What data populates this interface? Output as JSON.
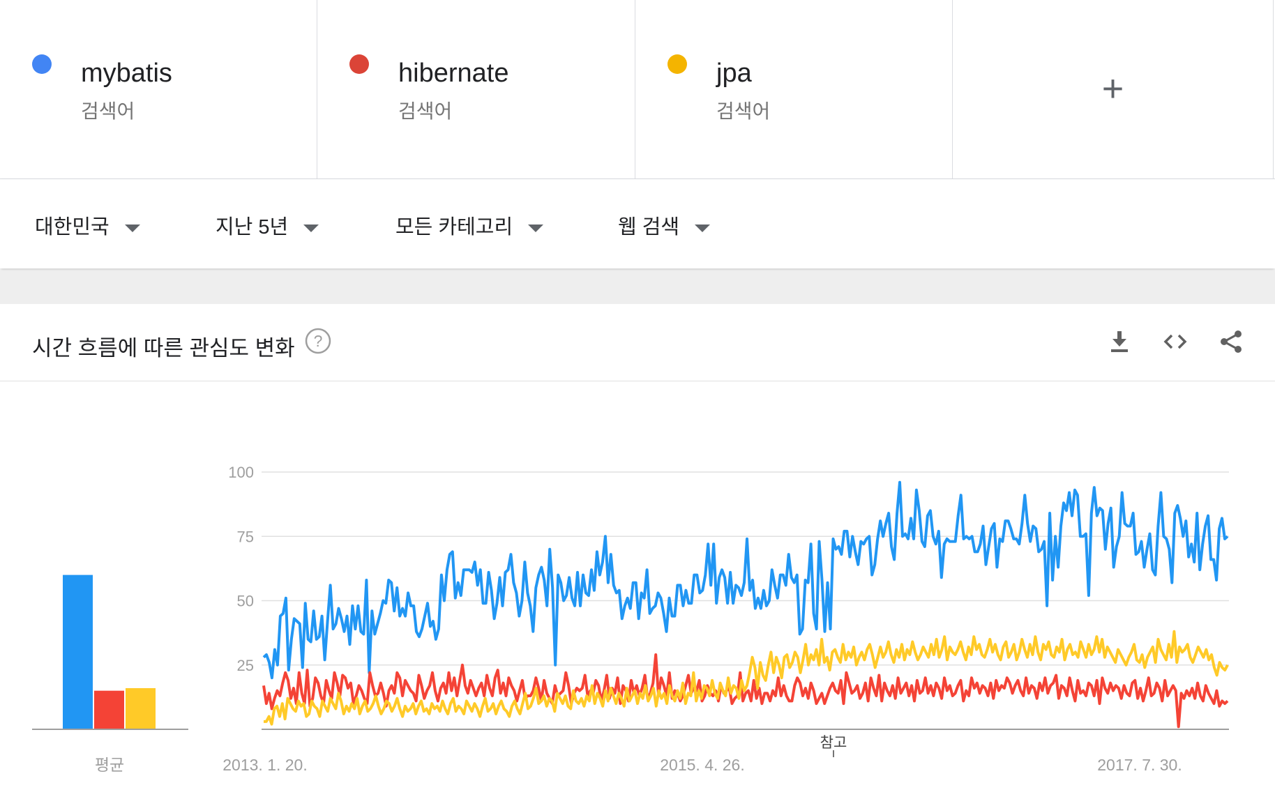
{
  "terms": [
    {
      "name": "mybatis",
      "type": "검색어",
      "color": "#4285F4"
    },
    {
      "name": "hibernate",
      "type": "검색어",
      "color": "#DB4437"
    },
    {
      "name": "jpa",
      "type": "검색어",
      "color": "#F4B400"
    }
  ],
  "add_term": {
    "label": "+"
  },
  "filters": {
    "region": "대한민국",
    "period": "지난 5년",
    "category": "모든 카테고리",
    "search_type": "웹 검색"
  },
  "card": {
    "title": "시간 흐름에 따른 관심도 변화",
    "help_icon": "help-circle-icon",
    "actions": [
      "download-icon",
      "embed-icon",
      "share-icon"
    ]
  },
  "chart_data": {
    "type": "line",
    "x_tick_labels": [
      "2013. 1. 20.",
      "2015. 4. 26.",
      "2017. 7. 30."
    ],
    "y_ticks": [
      25,
      50,
      75,
      100
    ],
    "ylim": [
      0,
      100
    ],
    "note_label": "참고",
    "grid": true,
    "average_bar": {
      "label": "평균",
      "values": [
        {
          "name": "mybatis",
          "value": 60,
          "color": "#2196F3"
        },
        {
          "name": "hibernate",
          "value": 15,
          "color": "#F44336"
        },
        {
          "name": "jpa",
          "value": 16,
          "color": "#FFCA28"
        }
      ]
    },
    "series": [
      {
        "name": "mybatis",
        "color": "#2196F3",
        "values": [
          28,
          29,
          26,
          20,
          31,
          25,
          44,
          45,
          51,
          23,
          35,
          43,
          42,
          41,
          24,
          49,
          35,
          34,
          46,
          35,
          36,
          44,
          27,
          42,
          56,
          39,
          41,
          47,
          43,
          38,
          44,
          33,
          48,
          39,
          48,
          38,
          37,
          58,
          22,
          46,
          37,
          41,
          45,
          50,
          49,
          58,
          57,
          46,
          55,
          44,
          47,
          44,
          53,
          48,
          48,
          38,
          36,
          39,
          44,
          49,
          40,
          42,
          35,
          39,
          60,
          50,
          62,
          68,
          69,
          51,
          57,
          52,
          62,
          62,
          62,
          61,
          65,
          56,
          62,
          49,
          49,
          61,
          54,
          43,
          49,
          59,
          48,
          61,
          62,
          68,
          57,
          53,
          44,
          50,
          65,
          53,
          48,
          38,
          55,
          60,
          63,
          58,
          48,
          70,
          55,
          25,
          60,
          57,
          50,
          52,
          59,
          51,
          48,
          61,
          48,
          60,
          53,
          52,
          62,
          54,
          69,
          60,
          65,
          75,
          57,
          68,
          56,
          53,
          54,
          43,
          48,
          51,
          47,
          57,
          57,
          43,
          53,
          51,
          62,
          45,
          47,
          48,
          53,
          51,
          45,
          38,
          51,
          44,
          44,
          56,
          56,
          48,
          54,
          49,
          49,
          60,
          60,
          53,
          54,
          60,
          72,
          56,
          72,
          49,
          59,
          62,
          59,
          49,
          61,
          49,
          56,
          55,
          52,
          57,
          74,
          54,
          58,
          47,
          51,
          47,
          54,
          48,
          50,
          62,
          56,
          51,
          60,
          60,
          56,
          68,
          59,
          57,
          60,
          37,
          39,
          58,
          57,
          72,
          45,
          39,
          73,
          58,
          38,
          57,
          39,
          74,
          70,
          71,
          68,
          77,
          77,
          67,
          75,
          69,
          64,
          73,
          72,
          74,
          75,
          60,
          64,
          74,
          81,
          75,
          80,
          84,
          71,
          66,
          84,
          96,
          75,
          76,
          74,
          82,
          74,
          93,
          85,
          73,
          71,
          83,
          85,
          75,
          72,
          77,
          59,
          72,
          74,
          73,
          73,
          73,
          83,
          91,
          74,
          75,
          74,
          75,
          69,
          69,
          72,
          79,
          64,
          71,
          78,
          80,
          63,
          74,
          73,
          81,
          81,
          78,
          74,
          74,
          72,
          80,
          91,
          80,
          73,
          79,
          78,
          69,
          70,
          73,
          48,
          84,
          58,
          75,
          63,
          79,
          88,
          85,
          92,
          83,
          93,
          91,
          75,
          75,
          76,
          52,
          84,
          94,
          83,
          86,
          85,
          70,
          80,
          86,
          63,
          71,
          75,
          92,
          80,
          79,
          79,
          84,
          68,
          69,
          73,
          63,
          70,
          76,
          62,
          60,
          79,
          92,
          75,
          74,
          70,
          57,
          84,
          87,
          82,
          75,
          81,
          67,
          72,
          65,
          84,
          62,
          72,
          79,
          83,
          66,
          66,
          58,
          78,
          82,
          74,
          75
        ],
        "values_note": "weekly index values, 2013-01 to 2017-12"
      },
      {
        "name": "hibernate",
        "color": "#F44336",
        "values": [
          17,
          10,
          14,
          8,
          12,
          15,
          13,
          18,
          22,
          19,
          12,
          16,
          10,
          22,
          14,
          10,
          23,
          9,
          12,
          20,
          18,
          13,
          10,
          19,
          15,
          12,
          22,
          18,
          13,
          21,
          20,
          16,
          18,
          10,
          13,
          17,
          15,
          12,
          10,
          22,
          17,
          13,
          14,
          18,
          14,
          9,
          15,
          17,
          14,
          22,
          20,
          13,
          19,
          17,
          15,
          14,
          11,
          21,
          17,
          12,
          15,
          17,
          22,
          15,
          11,
          16,
          18,
          14,
          22,
          15,
          20,
          13,
          19,
          25,
          17,
          14,
          19,
          16,
          13,
          16,
          18,
          13,
          21,
          16,
          13,
          20,
          23,
          14,
          18,
          13,
          20,
          17,
          15,
          11,
          15,
          19,
          12,
          13,
          13,
          15,
          20,
          16,
          11,
          19,
          14,
          12,
          10,
          17,
          13,
          14,
          15,
          22,
          17,
          10,
          14,
          16,
          15,
          16,
          21,
          13,
          15,
          14,
          19,
          17,
          11,
          15,
          21,
          12,
          16,
          14,
          20,
          10,
          17,
          15,
          11,
          19,
          14,
          17,
          13,
          16,
          21,
          12,
          14,
          18,
          29,
          13,
          20,
          17,
          13,
          22,
          12,
          15,
          14,
          11,
          13,
          17,
          21,
          14,
          16,
          15,
          19,
          11,
          13,
          17,
          14,
          13,
          15,
          11,
          17,
          14,
          15,
          16,
          10,
          12,
          13,
          22,
          11,
          14,
          15,
          11,
          19,
          12,
          16,
          10,
          14,
          14,
          11,
          15,
          13,
          20,
          13,
          17,
          13,
          11,
          11,
          17,
          20,
          18,
          13,
          16,
          12,
          18,
          15,
          10,
          12,
          14,
          10,
          13,
          16,
          18,
          15,
          14,
          19,
          10,
          22,
          18,
          14,
          15,
          17,
          12,
          14,
          18,
          11,
          20,
          16,
          13,
          21,
          11,
          18,
          15,
          13,
          17,
          12,
          20,
          14,
          16,
          18,
          13,
          17,
          11,
          19,
          14,
          15,
          20,
          14,
          17,
          13,
          18,
          16,
          12,
          20,
          15,
          17,
          13,
          14,
          17,
          19,
          11,
          15,
          13,
          20,
          16,
          18,
          14,
          17,
          16,
          13,
          18,
          12,
          19,
          15,
          17,
          16,
          20,
          18,
          14,
          17,
          19,
          15,
          13,
          20,
          14,
          17,
          16,
          12,
          18,
          15,
          20,
          14,
          17,
          18,
          21,
          12,
          17,
          16,
          13,
          20,
          15,
          11,
          19,
          14,
          15,
          13,
          18,
          17,
          13,
          19,
          10,
          20,
          16,
          14,
          18,
          15,
          17,
          16,
          12,
          17,
          14,
          13,
          18,
          19,
          12,
          16,
          11,
          15,
          20,
          13,
          14,
          18,
          16,
          11,
          19,
          13,
          15,
          17,
          15,
          1,
          14,
          12,
          15,
          13,
          16,
          12,
          18,
          13,
          11,
          17,
          14,
          12,
          10,
          15,
          9,
          11,
          10,
          11
        ],
        "values_note": "weekly index values"
      },
      {
        "name": "jpa",
        "color": "#FFCA28",
        "values": [
          3,
          3,
          5,
          2,
          8,
          9,
          5,
          10,
          4,
          12,
          10,
          8,
          7,
          11,
          9,
          10,
          5,
          6,
          11,
          9,
          8,
          5,
          11,
          9,
          7,
          12,
          10,
          8,
          14,
          11,
          6,
          9,
          7,
          10,
          8,
          12,
          6,
          9,
          11,
          7,
          8,
          10,
          13,
          9,
          6,
          8,
          11,
          10,
          7,
          9,
          12,
          8,
          5,
          9,
          7,
          8,
          10,
          6,
          9,
          11,
          7,
          8,
          6,
          10,
          8,
          9,
          7,
          11,
          8,
          6,
          10,
          12,
          7,
          9,
          8,
          6,
          11,
          9,
          7,
          10,
          8,
          5,
          9,
          12,
          7,
          8,
          10,
          6,
          9,
          11,
          8,
          7,
          5,
          9,
          11,
          8,
          6,
          10,
          14,
          8,
          9,
          12,
          16,
          10,
          11,
          13,
          9,
          12,
          11,
          7,
          14,
          12,
          10,
          13,
          9,
          8,
          15,
          11,
          10,
          12,
          9,
          13,
          11,
          17,
          10,
          14,
          12,
          9,
          15,
          11,
          16,
          13,
          10,
          14,
          12,
          9,
          16,
          11,
          13,
          15,
          10,
          14,
          12,
          17,
          11,
          13,
          16,
          9,
          15,
          12,
          14,
          10,
          17,
          13,
          11,
          15,
          12,
          18,
          10,
          14,
          13,
          22,
          11,
          15,
          12,
          17,
          16,
          13,
          19,
          14,
          12,
          18,
          15,
          13,
          20,
          14,
          17,
          16,
          12,
          19,
          15,
          17,
          22,
          28,
          24,
          16,
          26,
          21,
          19,
          25,
          30,
          22,
          28,
          25,
          20,
          28,
          29,
          24,
          26,
          30,
          28,
          22,
          27,
          33,
          25,
          29,
          27,
          31,
          25,
          35,
          26,
          28,
          23,
          30,
          31,
          28,
          26,
          33,
          27,
          30,
          28,
          32,
          25,
          28,
          30,
          27,
          31,
          33,
          29,
          24,
          28,
          32,
          28,
          30,
          34,
          29,
          26,
          31,
          28,
          33,
          27,
          31,
          29,
          34,
          30,
          27,
          29,
          32,
          30,
          28,
          33,
          29,
          35,
          28,
          31,
          36,
          27,
          32,
          30,
          29,
          31,
          34,
          30,
          27,
          32,
          29,
          36,
          31,
          33,
          29,
          28,
          31,
          35,
          30,
          33,
          29,
          27,
          32,
          34,
          28,
          30,
          33,
          27,
          30,
          35,
          31,
          28,
          33,
          29,
          36,
          30,
          27,
          33,
          31,
          34,
          29,
          28,
          32,
          30,
          35,
          27,
          31,
          33,
          29,
          30,
          28,
          34,
          31,
          28,
          33,
          29,
          31,
          36,
          30,
          35,
          28,
          32,
          30,
          28,
          26,
          31,
          29,
          27,
          25,
          28,
          30,
          33,
          27,
          26,
          29,
          24,
          28,
          30,
          32,
          26,
          35,
          31,
          29,
          27,
          33,
          28,
          38,
          26,
          32,
          30,
          31,
          33,
          28,
          26,
          29,
          32,
          30,
          28,
          31,
          27,
          29,
          24,
          21,
          26,
          24,
          23,
          25
        ],
        "values_note": "weekly index values"
      }
    ]
  }
}
